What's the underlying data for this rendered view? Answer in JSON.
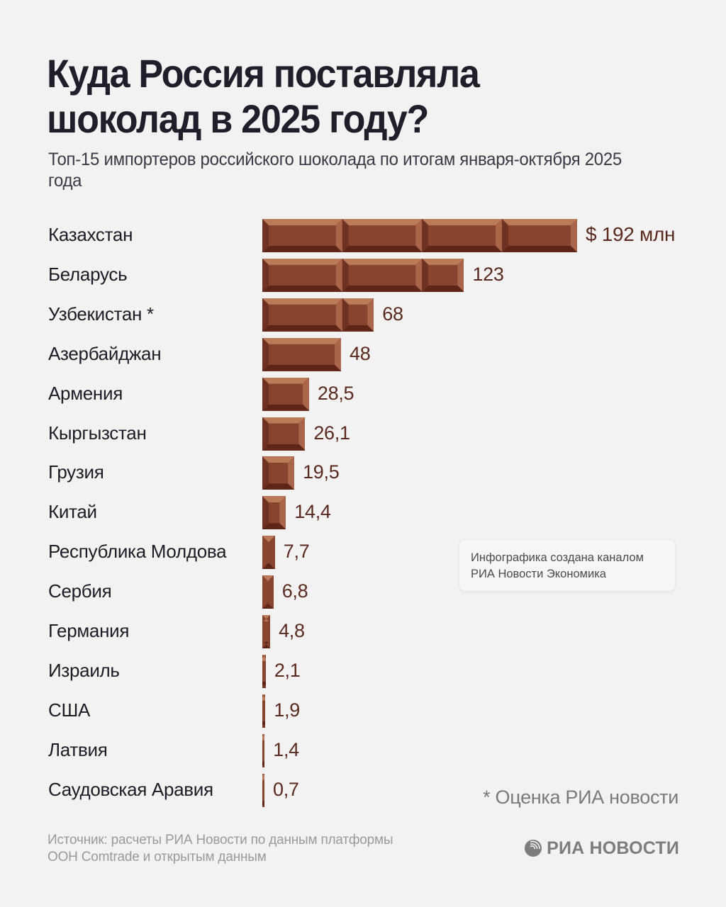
{
  "header": {
    "title_line1": "Куда Россия поставляла",
    "title_line2": "шоколад в 2025 году?",
    "subtitle": "Топ-15 импортеров российского шоколада по итогам января-октября 2025 года"
  },
  "chart_data": {
    "type": "bar",
    "orientation": "horizontal",
    "title": "Куда Россия поставляла шоколад в 2025 году?",
    "subtitle": "Топ-15 импортеров российского шоколада по итогам января-октября 2025 года",
    "unit": "$ млн",
    "categories": [
      "Казахстан",
      "Беларусь",
      "Узбекистан *",
      "Азербайджан",
      "Армения",
      "Кыргызстан",
      "Грузия",
      "Китай",
      "Республика Молдова",
      "Сербия",
      "Германия",
      "Израиль",
      "США",
      "Латвия",
      "Саудовская Аравия"
    ],
    "values": [
      192,
      123,
      68,
      48,
      28.5,
      26.1,
      19.5,
      14.4,
      7.7,
      6.8,
      4.8,
      2.1,
      1.9,
      1.4,
      0.7
    ],
    "value_labels": [
      "$ 192 млн",
      "123",
      "68",
      "48",
      "28,5",
      "26,1",
      "19,5",
      "14,4",
      "7,7",
      "6,8",
      "4,8",
      "2,1",
      "1,9",
      "1,4",
      "0,7"
    ],
    "xlabel": "",
    "ylabel": "",
    "grid": false,
    "legend": null,
    "annotations": [
      "* Оценка РИА новости"
    ],
    "bar_color": "#874530"
  },
  "credit_box": {
    "line1": "Инфографика создана каналом",
    "line2": "РИА Новости Экономика"
  },
  "footnote": "* Оценка РИА новости",
  "source": {
    "line1": "Источник: расчеты РИА Новости по данным платформы",
    "line2": "ООН Comtrade и открытым данным"
  },
  "logo": {
    "text": "РИА НОВОСТИ",
    "icon": "globe-icon"
  }
}
